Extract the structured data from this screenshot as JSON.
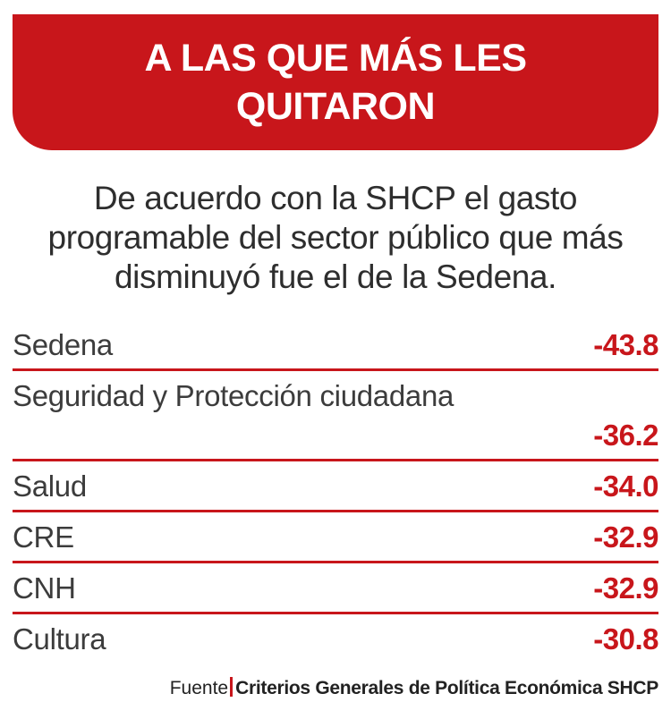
{
  "chart_data": {
    "type": "table",
    "title_lines": [
      "A LAS QUE MÁS LES",
      "QUITARON"
    ],
    "subtitle_lines": [
      "De acuerdo con la SHCP el gasto",
      "programable del sector público que más",
      "disminuyó fue el de la Sedena."
    ],
    "rows": [
      {
        "label": "Sedena",
        "value": "-43.8"
      },
      {
        "label": "Seguridad y Protección ciudadana",
        "value": "-36.2"
      },
      {
        "label": "Salud",
        "value": "-34.0"
      },
      {
        "label": "CRE",
        "value": "-32.9"
      },
      {
        "label": "CNH",
        "value": "-32.9"
      },
      {
        "label": "Cultura",
        "value": "-30.8"
      }
    ],
    "source_label": "Fuente",
    "source_name": "Criterios Generales de Política Económica SHCP"
  },
  "colors": {
    "accent": "#c8161b",
    "text": "#3a3a3a",
    "background": "#ffffff"
  }
}
